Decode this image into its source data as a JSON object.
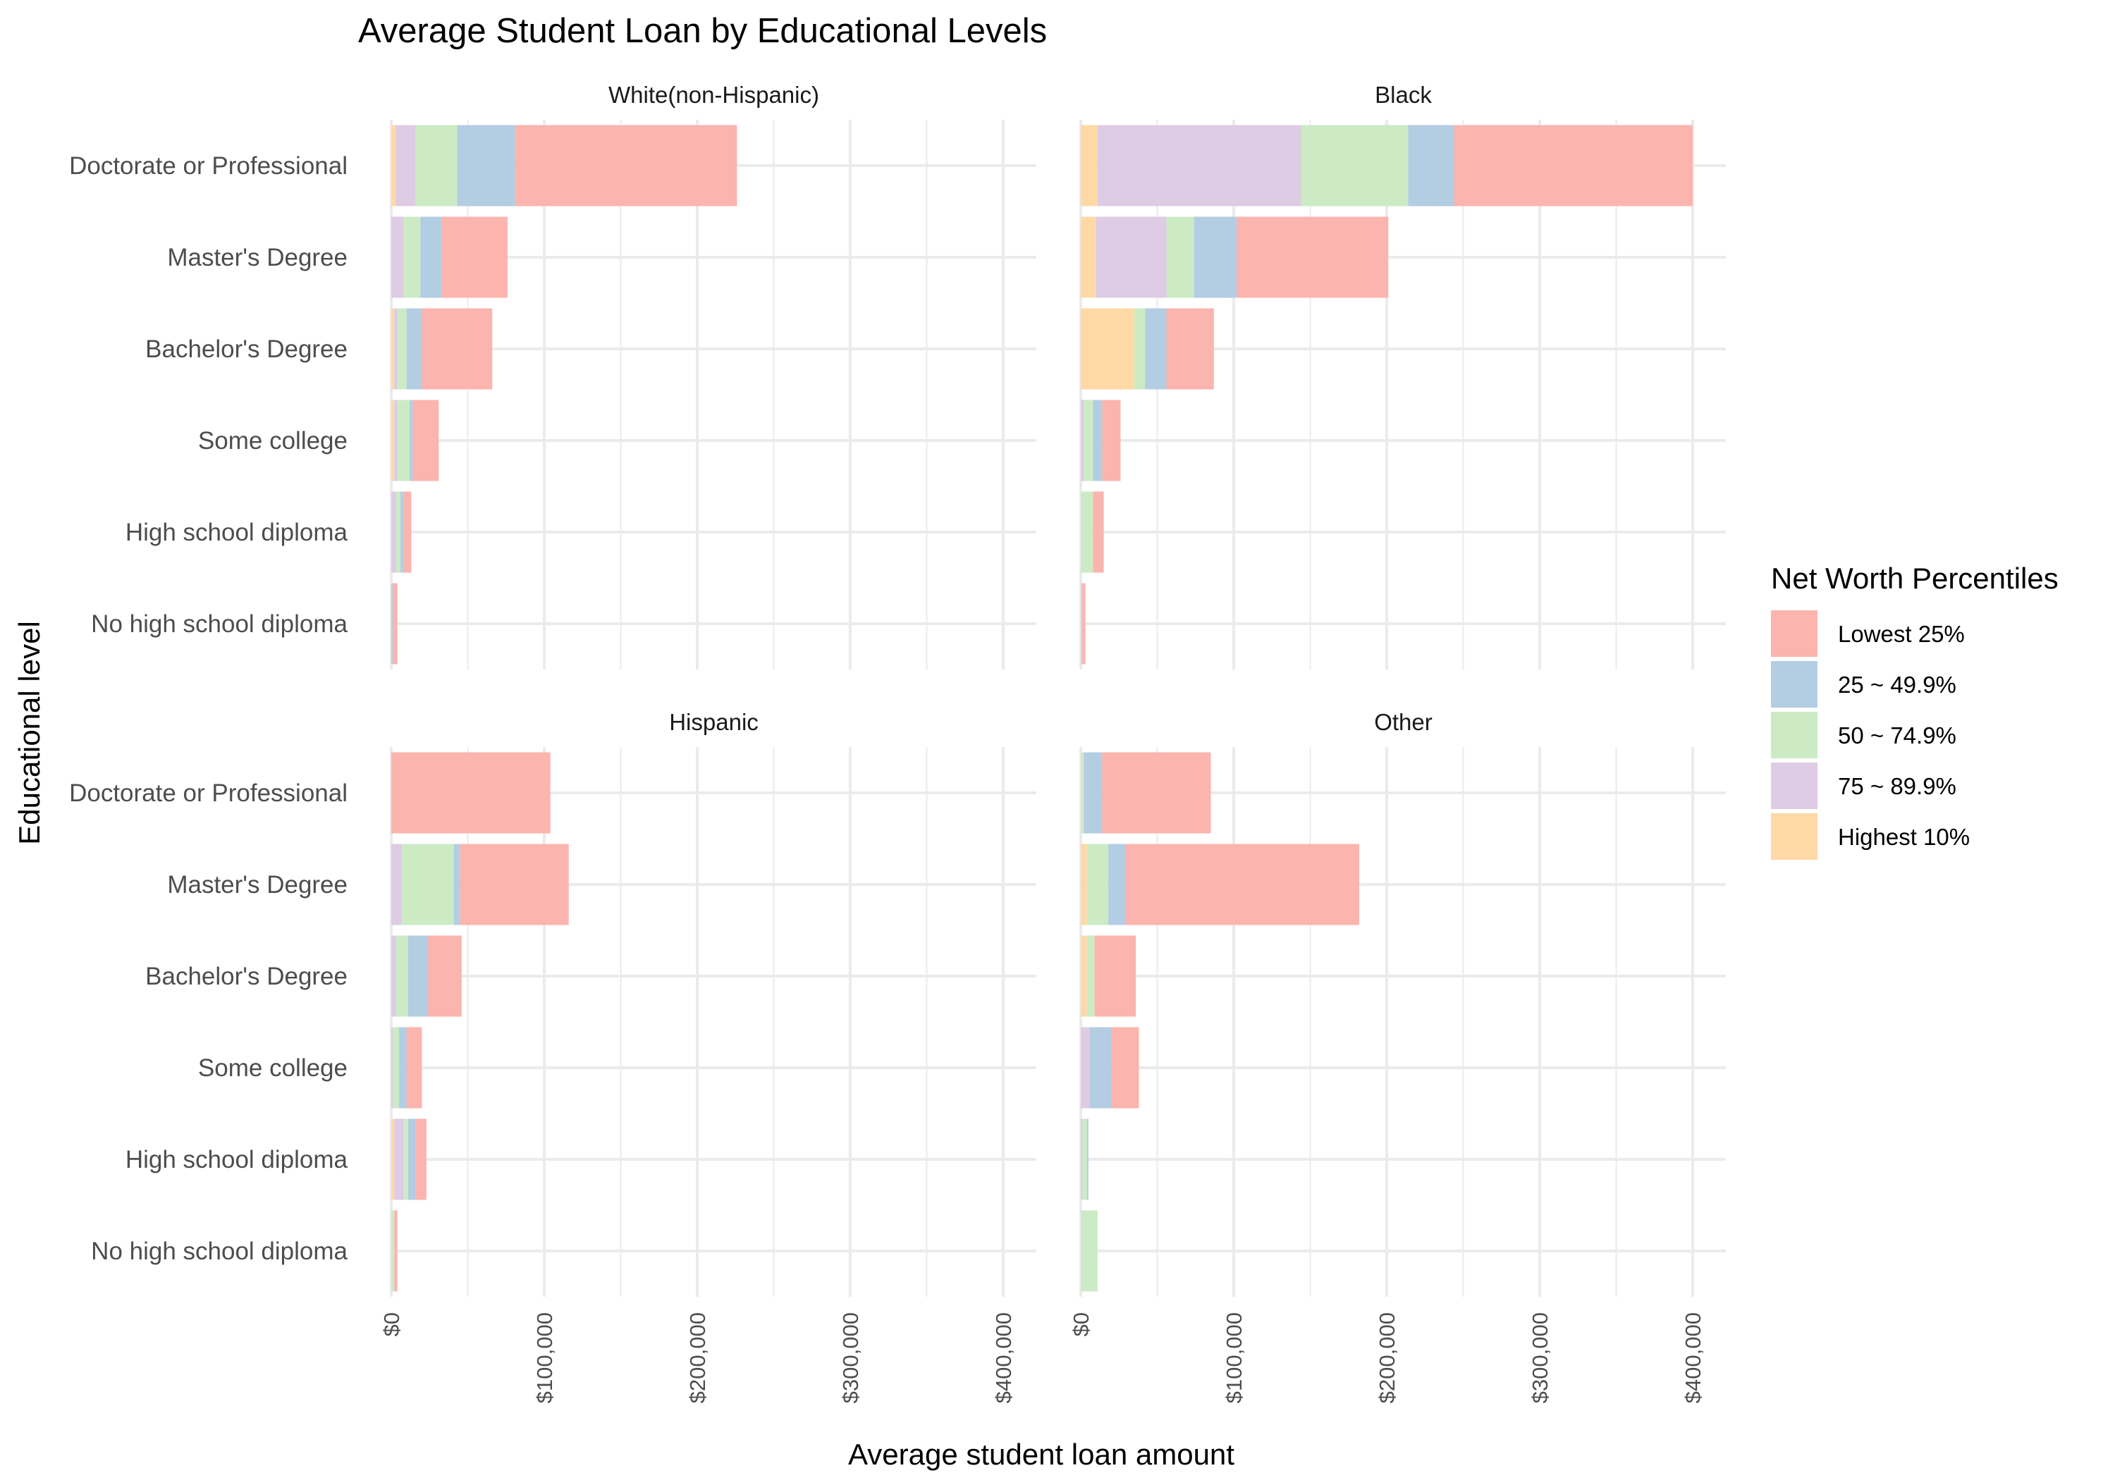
{
  "chart_data": {
    "type": "bar",
    "orientation": "horizontal",
    "stacked": true,
    "title": "Average Student Loan by Educational Levels",
    "xlabel": "Average student loan amount",
    "ylabel": "Educational level",
    "xlim": [
      0,
      400000
    ],
    "x_ticks": [
      "$0",
      "$100,000",
      "$200,000",
      "$300,000",
      "$400,000"
    ],
    "x_tick_values": [
      0,
      100000,
      200000,
      300000,
      400000
    ],
    "grid": true,
    "legend": {
      "title": "Net Worth Percentiles",
      "position": "right",
      "entries": [
        "Lowest 25%",
        "25 ~ 49.9%",
        "50 ~ 74.9%",
        "75 ~ 89.9%",
        "Highest 10%"
      ]
    },
    "colors": {
      "Lowest 25%": "#FBB4AE",
      "25 ~ 49.9%": "#B3CDE3",
      "50 ~ 74.9%": "#CCEBC5",
      "75 ~ 89.9%": "#DECBE4",
      "Highest 10%": "#FED9A6"
    },
    "categories": [
      "Doctorate or Professional",
      "Master's Degree",
      "Bachelor's Degree",
      "Some college",
      "High school diploma",
      "No high school diploma"
    ],
    "stack_order": [
      "Highest 10%",
      "75 ~ 89.9%",
      "50 ~ 74.9%",
      "25 ~ 49.9%",
      "Lowest 25%"
    ],
    "panels": [
      {
        "name": "White(non-Hispanic)",
        "series": [
          {
            "name": "Highest 10%",
            "values": [
              3000,
              0,
              2000,
              2000,
              0,
              0
            ]
          },
          {
            "name": "75 ~ 89.9%",
            "values": [
              13000,
              8000,
              2000,
              2000,
              3000,
              0
            ]
          },
          {
            "name": "50 ~ 74.9%",
            "values": [
              27000,
              11000,
              6000,
              8000,
              3000,
              0
            ]
          },
          {
            "name": "25 ~ 49.9%",
            "values": [
              38000,
              14000,
              10000,
              2000,
              2000,
              1000
            ]
          },
          {
            "name": "Lowest 25%",
            "values": [
              145000,
              43000,
              46000,
              17000,
              5000,
              3000
            ]
          }
        ]
      },
      {
        "name": "Black",
        "series": [
          {
            "name": "Highest 10%",
            "values": [
              11000,
              10000,
              35000,
              0,
              0,
              0
            ]
          },
          {
            "name": "75 ~ 89.9%",
            "values": [
              133000,
              46000,
              0,
              2000,
              0,
              1000
            ]
          },
          {
            "name": "50 ~ 74.9%",
            "values": [
              70000,
              18000,
              7000,
              6000,
              8000,
              0
            ]
          },
          {
            "name": "25 ~ 49.9%",
            "values": [
              30000,
              28000,
              14000,
              6000,
              0,
              0
            ]
          },
          {
            "name": "Lowest 25%",
            "values": [
              156000,
              99000,
              31000,
              12000,
              7000,
              2000
            ]
          }
        ]
      },
      {
        "name": "Hispanic",
        "series": [
          {
            "name": "Highest 10%",
            "values": [
              0,
              0,
              0,
              0,
              2000,
              0
            ]
          },
          {
            "name": "75 ~ 89.9%",
            "values": [
              0,
              7000,
              3000,
              1000,
              6000,
              0
            ]
          },
          {
            "name": "50 ~ 74.9%",
            "values": [
              0,
              34000,
              8000,
              4000,
              3000,
              2000
            ]
          },
          {
            "name": "25 ~ 49.9%",
            "values": [
              0,
              4000,
              13000,
              5000,
              5000,
              0
            ]
          },
          {
            "name": "Lowest 25%",
            "values": [
              104000,
              71000,
              22000,
              10000,
              7000,
              2000
            ]
          }
        ]
      },
      {
        "name": "Other",
        "series": [
          {
            "name": "Highest 10%",
            "values": [
              0,
              4000,
              4000,
              0,
              0,
              0
            ]
          },
          {
            "name": "75 ~ 89.9%",
            "values": [
              0,
              0,
              0,
              6000,
              1000,
              0
            ]
          },
          {
            "name": "50 ~ 74.9%",
            "values": [
              2000,
              14000,
              5000,
              0,
              3000,
              11000
            ]
          },
          {
            "name": "25 ~ 49.9%",
            "values": [
              12000,
              11000,
              0,
              14000,
              1000,
              0
            ]
          },
          {
            "name": "Lowest 25%",
            "values": [
              71000,
              153000,
              27000,
              18000,
              0,
              0
            ]
          }
        ]
      }
    ]
  }
}
